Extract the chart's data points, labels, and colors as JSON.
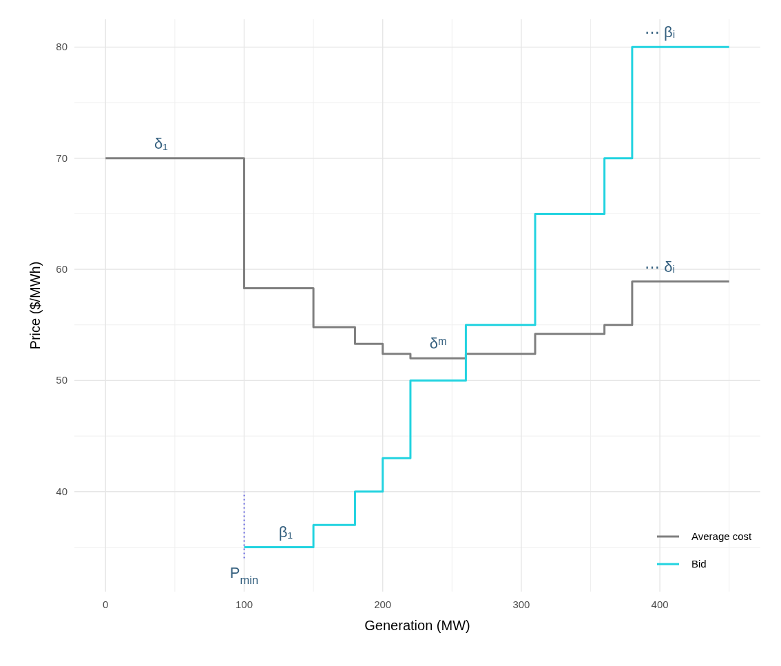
{
  "chart_data": {
    "type": "step",
    "xlabel": "Generation (MW)",
    "ylabel": "Price ($/MWh)",
    "xlim": [
      -22.5,
      472.5
    ],
    "xticks": [
      0,
      100,
      200,
      300,
      400
    ],
    "ylim": [
      31,
      82.5
    ],
    "yticks": [
      40,
      50,
      60,
      70,
      80
    ],
    "grid": true,
    "legend": "bottom right",
    "line_style": "solid",
    "marker": "none",
    "series": [
      {
        "name": "Average cost",
        "color": "#7f7f7f",
        "x": [
          0,
          100,
          150,
          180,
          200,
          220,
          260,
          310,
          360,
          380,
          450
        ],
        "values": [
          70,
          58.3,
          54.8,
          53.3,
          52.4,
          52.0,
          52.4,
          54.2,
          55.0,
          58.9,
          58.9
        ]
      },
      {
        "name": "Bid",
        "color": "#22d3e0",
        "x": [
          100,
          150,
          180,
          200,
          220,
          260,
          310,
          360,
          380,
          450
        ],
        "values": [
          35,
          37,
          40,
          43,
          50,
          55,
          65,
          70,
          80,
          80
        ]
      },
      {
        "type": "line",
        "color": "#3b3bd9",
        "line_style": "dotted",
        "x": [
          100,
          100
        ],
        "values": [
          34,
          40
        ]
      }
    ],
    "annotations": [
      {
        "text": "δ₁",
        "x": 40,
        "y": 70
      },
      {
        "text": "β₁",
        "x": 130,
        "y": 35
      },
      {
        "text": "δᵐ",
        "x": 240,
        "y": 52.0
      },
      {
        "text": "⋯ δᵢ",
        "x": 400,
        "y": 58.9
      },
      {
        "text": "⋯ βᵢ",
        "x": 400,
        "y": 80
      },
      {
        "text": "P$_{min}$",
        "x": 100,
        "y": 34
      }
    ]
  }
}
